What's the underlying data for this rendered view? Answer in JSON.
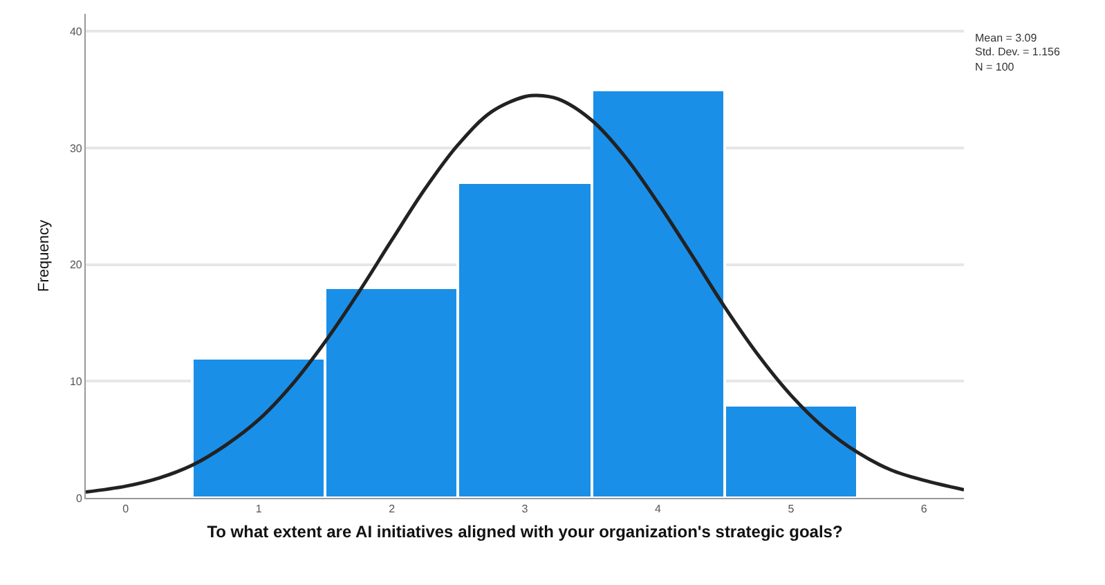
{
  "chart_data": {
    "type": "histogram",
    "xlabel": "To what extent are AI initiatives aligned with your organization's strategic goals?",
    "ylabel": "Frequency",
    "bins": [
      0.5,
      1.5,
      2.5,
      3.5,
      4.5,
      5.5
    ],
    "values": [
      12,
      18,
      27,
      35,
      8
    ],
    "color": "#1a8fe8",
    "series": [
      {
        "type": "line",
        "color": "#222222",
        "x": [
          -0.3,
          0,
          0.25,
          0.5,
          0.75,
          1,
          1.25,
          1.5,
          1.75,
          2,
          2.25,
          2.5,
          2.75,
          3,
          3.09,
          3.25,
          3.5,
          3.75,
          4,
          4.25,
          4.5,
          4.75,
          5,
          5.25,
          5.5,
          5.75,
          6,
          6.3
        ],
        "values": [
          0.5,
          1.0,
          1.7,
          2.8,
          4.5,
          6.7,
          9.7,
          13.4,
          17.6,
          22.1,
          26.5,
          30.3,
          33.1,
          34.4,
          34.5,
          34.2,
          32.4,
          29.3,
          25.3,
          20.9,
          16.4,
          12.3,
          8.8,
          6.0,
          3.9,
          2.4,
          1.5,
          0.7
        ]
      }
    ],
    "annotations": [
      "Mean = 3.09",
      "Std. Dev. = 1.156",
      "N = 100"
    ],
    "xlim": [
      -0.3,
      6.3
    ],
    "xticks": [
      0,
      1,
      2,
      3,
      4,
      5,
      6
    ],
    "ylim": [
      0,
      41.5
    ],
    "yticks": [
      0,
      10,
      20,
      30,
      40
    ],
    "grid": "y"
  }
}
